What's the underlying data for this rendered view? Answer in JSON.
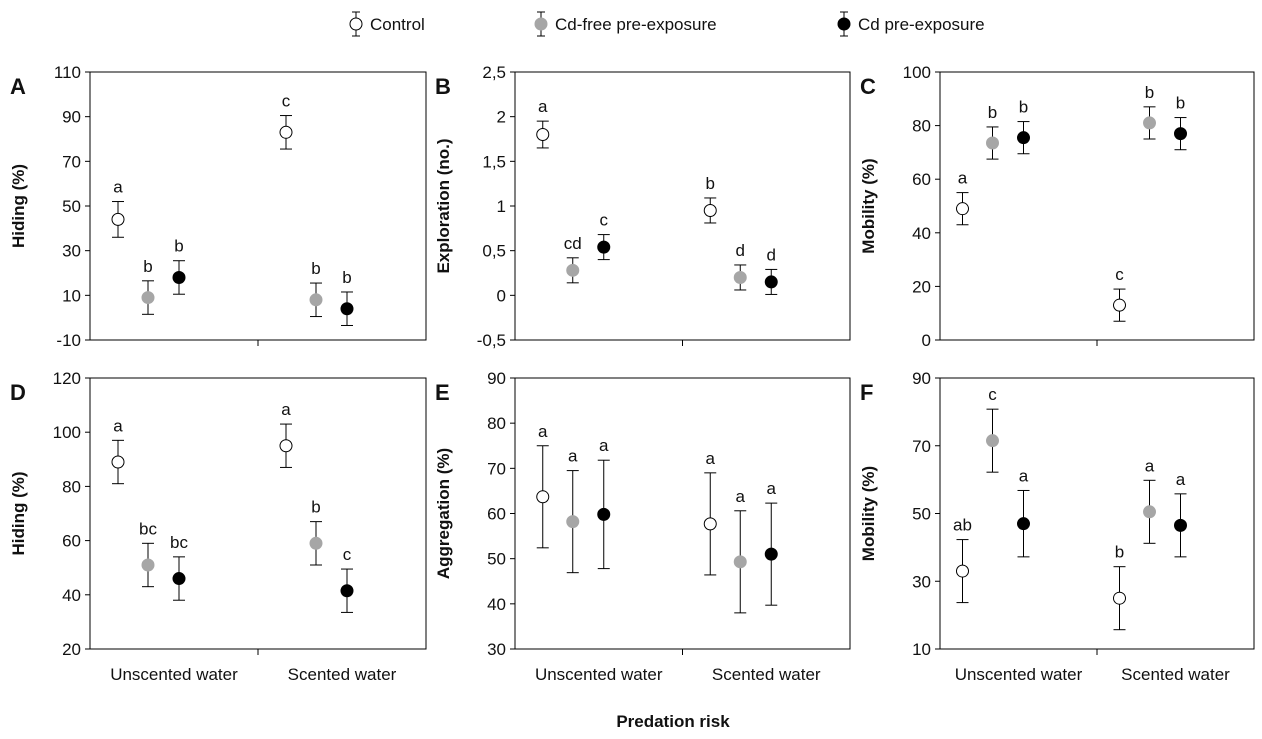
{
  "legend": [
    {
      "label": "Control",
      "fill": "#ffffff"
    },
    {
      "label": "Cd-free pre-exposure",
      "fill": "#a6a6a6"
    },
    {
      "label": "Cd pre-exposure",
      "fill": "#000000"
    }
  ],
  "xlabel_common": "Predation risk",
  "colors": {
    "control": "#ffffff",
    "cd_free": "#a6a6a6",
    "cd": "#000000",
    "stroke": "#000000"
  },
  "chart_data": [
    {
      "type": "scatter",
      "panel": "A",
      "ylabel": "Hiding (%)",
      "ylim": [
        -10,
        110
      ],
      "yticks": [
        "-10",
        "10",
        "30",
        "50",
        "70",
        "90",
        "110"
      ],
      "categories": [
        "Unscented water",
        "Scented water"
      ],
      "show_category_labels": false,
      "series": [
        {
          "name": "Control",
          "values": [
            44,
            83
          ],
          "err": [
            8,
            7.5
          ],
          "letters": [
            "a",
            "c"
          ]
        },
        {
          "name": "Cd-free pre-exposure",
          "values": [
            9,
            8
          ],
          "err": [
            7.5,
            7.5
          ],
          "letters": [
            "b",
            "b"
          ]
        },
        {
          "name": "Cd pre-exposure",
          "values": [
            18,
            4
          ],
          "err": [
            7.5,
            7.5
          ],
          "letters": [
            "b",
            "b"
          ]
        }
      ]
    },
    {
      "type": "scatter",
      "panel": "B",
      "ylabel": "Exploration (no.)",
      "ylim": [
        -0.5,
        2.5
      ],
      "yticks": [
        "-0,5",
        "0",
        "0,5",
        "1",
        "1,5",
        "2",
        "2,5"
      ],
      "categories": [
        "Unscented water",
        "Scented water"
      ],
      "show_category_labels": false,
      "series": [
        {
          "name": "Control",
          "values": [
            1.8,
            0.95
          ],
          "err": [
            0.15,
            0.14
          ],
          "letters": [
            "a",
            "b"
          ]
        },
        {
          "name": "Cd-free pre-exposure",
          "values": [
            0.28,
            0.2
          ],
          "err": [
            0.14,
            0.14
          ],
          "letters": [
            "cd",
            "d"
          ]
        },
        {
          "name": "Cd pre-exposure",
          "values": [
            0.54,
            0.15
          ],
          "err": [
            0.14,
            0.14
          ],
          "letters": [
            "c",
            "d"
          ]
        }
      ]
    },
    {
      "type": "scatter",
      "panel": "C",
      "ylabel": "Mobility (%)",
      "ylim": [
        0,
        100
      ],
      "yticks": [
        "0",
        "20",
        "40",
        "60",
        "80",
        "100"
      ],
      "categories": [
        "Unscented water",
        "Scented water"
      ],
      "show_category_labels": false,
      "series": [
        {
          "name": "Control",
          "values": [
            49,
            13
          ],
          "err": [
            6,
            6
          ],
          "letters": [
            "a",
            "c"
          ]
        },
        {
          "name": "Cd-free pre-exposure",
          "values": [
            73.5,
            81
          ],
          "err": [
            6,
            6
          ],
          "letters": [
            "b",
            "b"
          ]
        },
        {
          "name": "Cd pre-exposure",
          "values": [
            75.5,
            77
          ],
          "err": [
            6,
            6
          ],
          "letters": [
            "b",
            "b"
          ]
        }
      ]
    },
    {
      "type": "scatter",
      "panel": "D",
      "ylabel": "Hiding (%)",
      "ylim": [
        20,
        120
      ],
      "yticks": [
        "20",
        "40",
        "60",
        "80",
        "100",
        "120"
      ],
      "categories": [
        "Unscented water",
        "Scented water"
      ],
      "show_category_labels": true,
      "series": [
        {
          "name": "Control",
          "values": [
            89,
            95
          ],
          "err": [
            8,
            8
          ],
          "letters": [
            "a",
            "a"
          ]
        },
        {
          "name": "Cd-free pre-exposure",
          "values": [
            51,
            59
          ],
          "err": [
            8,
            8
          ],
          "letters": [
            "bc",
            "b"
          ]
        },
        {
          "name": "Cd pre-exposure",
          "values": [
            46,
            41.5
          ],
          "err": [
            8,
            8
          ],
          "letters": [
            "bc",
            "c"
          ]
        }
      ]
    },
    {
      "type": "scatter",
      "panel": "E",
      "ylabel": "Aggregation (%)",
      "ylim": [
        30,
        90
      ],
      "yticks": [
        "30",
        "40",
        "50",
        "60",
        "70",
        "80",
        "90"
      ],
      "categories": [
        "Unscented water",
        "Scented water"
      ],
      "show_category_labels": true,
      "series": [
        {
          "name": "Control",
          "values": [
            63.7,
            57.7
          ],
          "err": [
            11.3,
            11.3
          ],
          "letters": [
            "a",
            "a"
          ]
        },
        {
          "name": "Cd-free pre-exposure",
          "values": [
            58.2,
            49.3
          ],
          "err": [
            11.3,
            11.3
          ],
          "letters": [
            "a",
            "a"
          ]
        },
        {
          "name": "Cd pre-exposure",
          "values": [
            59.8,
            51
          ],
          "err": [
            12,
            11.3
          ],
          "letters": [
            "a",
            "a"
          ]
        }
      ]
    },
    {
      "type": "scatter",
      "panel": "F",
      "ylabel": "Mobility (%)",
      "ylim": [
        10,
        90
      ],
      "yticks": [
        "10",
        "30",
        "50",
        "70",
        "90"
      ],
      "categories": [
        "Unscented water",
        "Scented water"
      ],
      "show_category_labels": true,
      "series": [
        {
          "name": "Control",
          "values": [
            33,
            25
          ],
          "err": [
            9.3,
            9.3
          ],
          "letters": [
            "ab",
            "b"
          ]
        },
        {
          "name": "Cd-free pre-exposure",
          "values": [
            71.5,
            50.5
          ],
          "err": [
            9.3,
            9.3
          ],
          "letters": [
            "c",
            "a"
          ]
        },
        {
          "name": "Cd pre-exposure",
          "values": [
            47,
            46.5
          ],
          "err": [
            9.8,
            9.3
          ],
          "letters": [
            "a",
            "a"
          ]
        }
      ]
    }
  ]
}
